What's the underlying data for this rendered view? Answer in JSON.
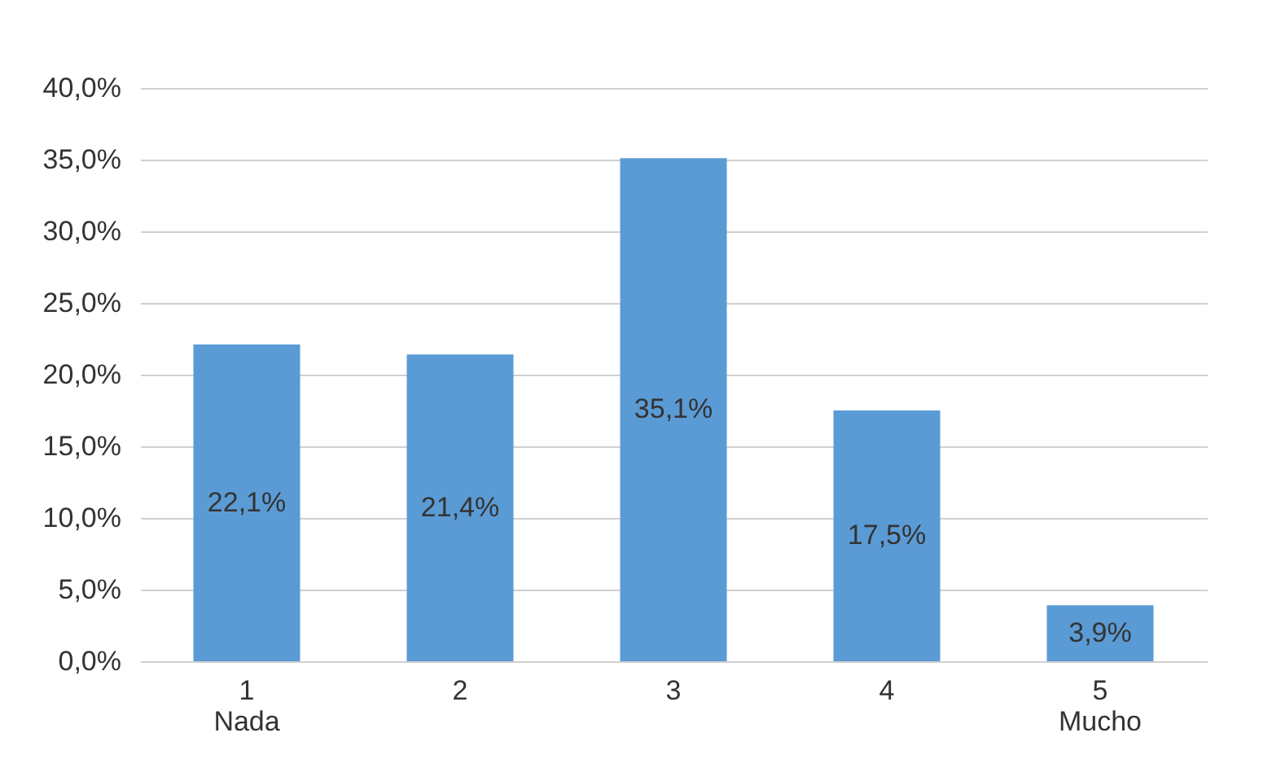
{
  "chart_data": {
    "type": "bar",
    "categories": [
      "1\nNada",
      "2",
      "3",
      "4",
      "5\nMucho"
    ],
    "values": [
      22.1,
      21.4,
      35.1,
      17.5,
      3.9
    ],
    "value_labels": [
      "22,1%",
      "21,4%",
      "35,1%",
      "17,5%",
      "3,9%"
    ],
    "color": "#5b9bd5",
    "ylim": [
      0,
      40
    ],
    "yticks": [
      {
        "value": 0,
        "label": "0,0%"
      },
      {
        "value": 5,
        "label": "5,0%"
      },
      {
        "value": 10,
        "label": "10,0%"
      },
      {
        "value": 15,
        "label": "15,0%"
      },
      {
        "value": 20,
        "label": "20,0%"
      },
      {
        "value": 25,
        "label": "25,0%"
      },
      {
        "value": 30,
        "label": "30,0%"
      },
      {
        "value": 35,
        "label": "35,0%"
      },
      {
        "value": 40,
        "label": "40,0%"
      }
    ],
    "grid": "y"
  }
}
